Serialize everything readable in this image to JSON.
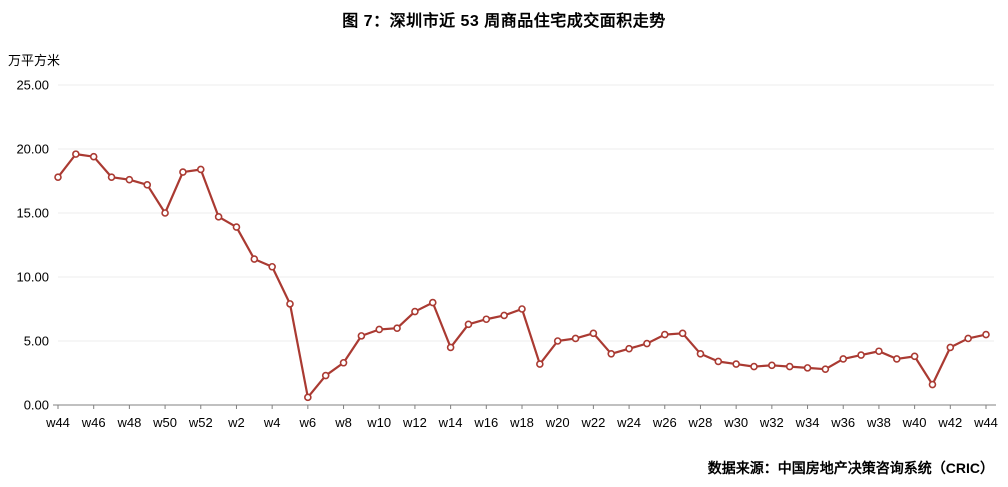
{
  "title": "图 7：深圳市近 53 周商品住宅成交面积走势",
  "unit_label": "万平方米",
  "source": "数据来源：中国房地产决策咨询系统（CRIC）",
  "chart_data": {
    "type": "line",
    "title": "图 7：深圳市近 53 周商品住宅成交面积走势",
    "ylabel": "万平方米",
    "ylim": [
      0,
      25
    ],
    "y_ticks": [
      "0.00",
      "5.00",
      "10.00",
      "15.00",
      "20.00",
      "25.00"
    ],
    "x_tick_labels": [
      "w44",
      "w46",
      "w48",
      "w50",
      "w52",
      "w2",
      "w4",
      "w6",
      "w8",
      "w10",
      "w12",
      "w14",
      "w16",
      "w18",
      "w20",
      "w22",
      "w24",
      "w26",
      "w28",
      "w30",
      "w32",
      "w34",
      "w36",
      "w38",
      "w40",
      "w42",
      "w44"
    ],
    "x_tick_every": 2,
    "n_points": 53,
    "values": [
      17.8,
      19.6,
      19.4,
      17.8,
      17.6,
      17.2,
      15.0,
      18.2,
      18.4,
      14.7,
      13.9,
      11.4,
      10.8,
      7.9,
      0.6,
      2.3,
      3.3,
      5.4,
      5.9,
      6.0,
      7.3,
      8.0,
      4.5,
      6.3,
      6.7,
      7.0,
      7.5,
      3.2,
      5.0,
      5.2,
      5.6,
      4.0,
      4.4,
      4.8,
      5.5,
      5.6,
      4.0,
      3.4,
      3.2,
      3.0,
      3.1,
      3.0,
      2.9,
      2.8,
      3.6,
      3.9,
      4.2,
      3.6,
      3.8,
      1.6,
      4.5,
      5.2,
      5.5
    ],
    "line_color": "#AA3A32",
    "marker": "open-circle",
    "grid": "horizontal-light",
    "legend": "none"
  }
}
